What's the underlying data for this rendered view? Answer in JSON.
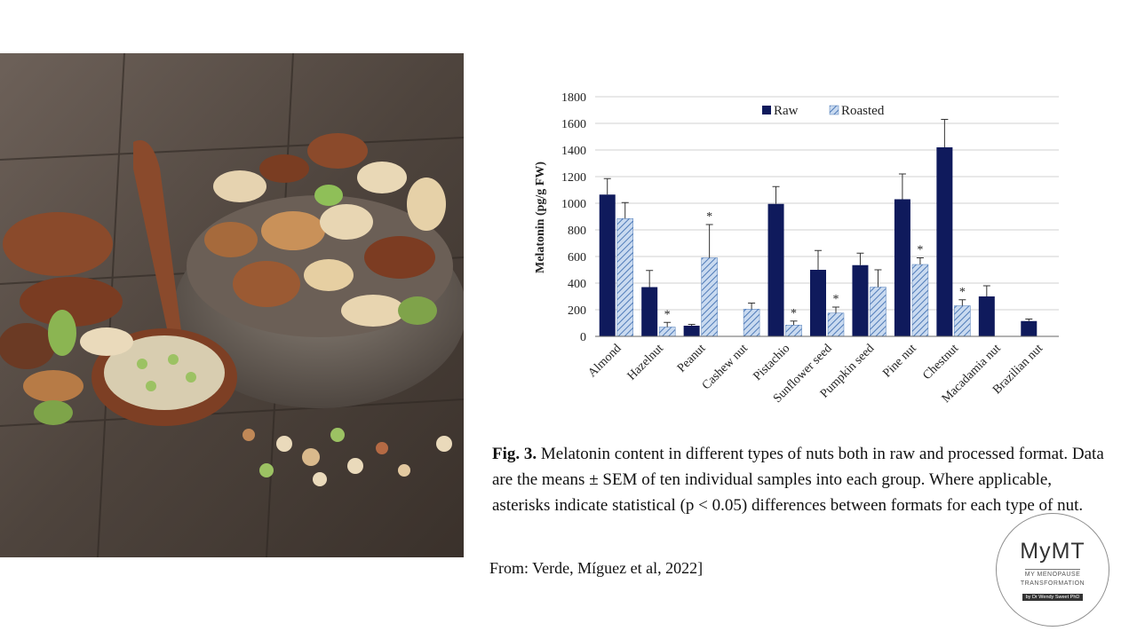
{
  "photo": {
    "alt": ""
  },
  "chart_data": {
    "type": "bar",
    "title": "",
    "xlabel": "",
    "ylabel": "Melatonin (pg/g FW)",
    "ylim": [
      0,
      1800
    ],
    "yticks": [
      0,
      200,
      400,
      600,
      800,
      1000,
      1200,
      1400,
      1600,
      1800
    ],
    "grid": "horizontal",
    "legend_position": "top",
    "categories": [
      "Almond",
      "Hazelnut",
      "Peanut",
      "Cashew nut",
      "Pistachio",
      "Sunflower seed",
      "Pumpkin seed",
      "Pine nut",
      "Chestnut",
      "Macadamia nut",
      "Brazilian nut"
    ],
    "series": [
      {
        "name": "Raw",
        "color": "#0f1a5c",
        "pattern": "solid",
        "values": [
          1065,
          370,
          80,
          null,
          995,
          500,
          535,
          1030,
          1420,
          300,
          115
        ],
        "errors": [
          120,
          125,
          10,
          null,
          130,
          145,
          90,
          190,
          210,
          80,
          15
        ]
      },
      {
        "name": "Roasted",
        "color": "#8fb1dc",
        "pattern": "hatched",
        "values": [
          885,
          70,
          590,
          205,
          85,
          175,
          370,
          540,
          230,
          null,
          null
        ],
        "errors": [
          120,
          35,
          250,
          45,
          30,
          45,
          130,
          50,
          45,
          null,
          null
        ]
      }
    ],
    "significant": [
      false,
      true,
      true,
      false,
      true,
      true,
      false,
      true,
      true,
      false,
      false
    ],
    "significance_marker": "*"
  },
  "caption": {
    "label": "Fig. 3.",
    "text": " Melatonin content in different types of nuts both in raw and processed format. Data are the means ± SEM of ten individual samples into each group. Where applicable, asterisks indicate statistical (p < 0.05) differences between formats for each type of nut."
  },
  "source": "From: Verde, Míguez et al, 2022]",
  "logo": {
    "name": "MyMT",
    "line1": "MY MENOPAUSE",
    "line2": "TRANSFORMATION",
    "line3": "by Dr Wendy Sweet PhD"
  }
}
